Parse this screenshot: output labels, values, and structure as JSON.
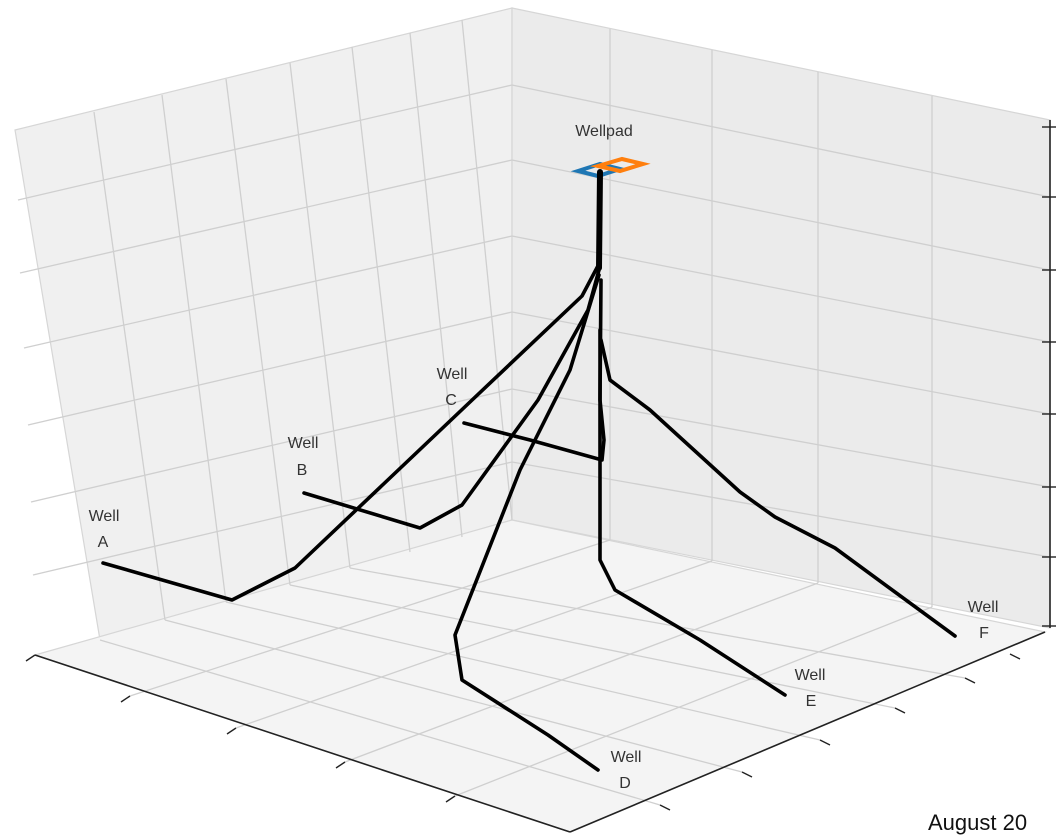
{
  "wellpad": {
    "label": "Wellpad"
  },
  "wells": [
    {
      "id": "A",
      "line1": "Well",
      "line2": "A"
    },
    {
      "id": "B",
      "line1": "Well",
      "line2": "B"
    },
    {
      "id": "C",
      "line1": "Well",
      "line2": "C"
    },
    {
      "id": "D",
      "line1": "Well",
      "line2": "D"
    },
    {
      "id": "E",
      "line1": "Well",
      "line2": "E"
    },
    {
      "id": "F",
      "line1": "Well",
      "line2": "F"
    }
  ],
  "footer": {
    "text": "August 20"
  },
  "colors": {
    "pad_left": "#1f77b4",
    "pad_right": "#ff7f0e",
    "trajectory": "#000000",
    "grid": "#cfcfcf"
  }
}
